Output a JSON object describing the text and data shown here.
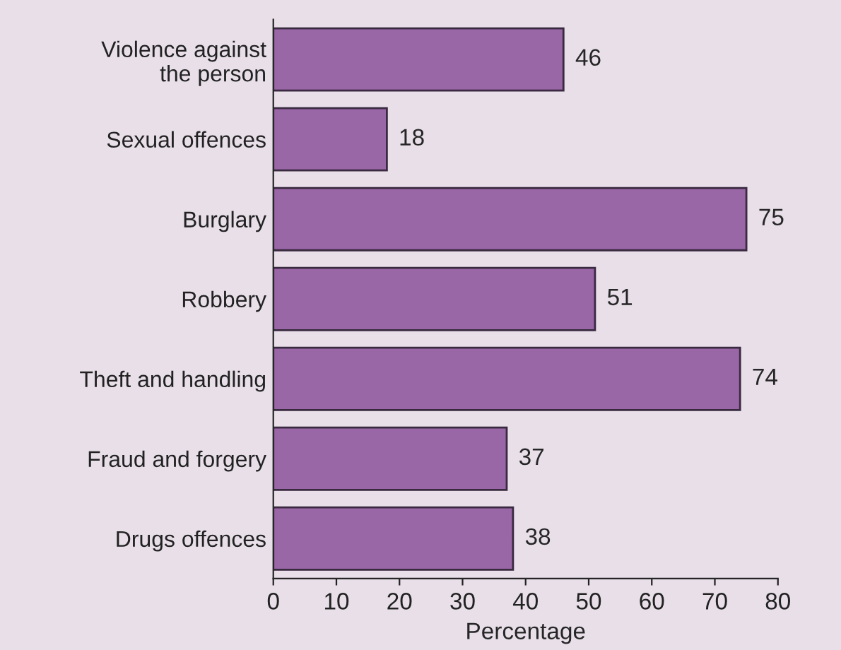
{
  "chart_data": {
    "type": "bar",
    "orientation": "horizontal",
    "xlabel": "Percentage",
    "categories": [
      "Violence against\nthe person",
      "Sexual offences",
      "Burglary",
      "Robbery",
      "Theft and handling",
      "Fraud and forgery",
      "Drugs offences"
    ],
    "values": [
      46,
      18,
      75,
      51,
      74,
      37,
      38
    ],
    "color": "#9966a6",
    "xlim": [
      0,
      80
    ],
    "xticks": [
      0,
      10,
      20,
      30,
      40,
      50,
      60,
      70,
      80
    ],
    "data_labels": true,
    "grid": false
  }
}
